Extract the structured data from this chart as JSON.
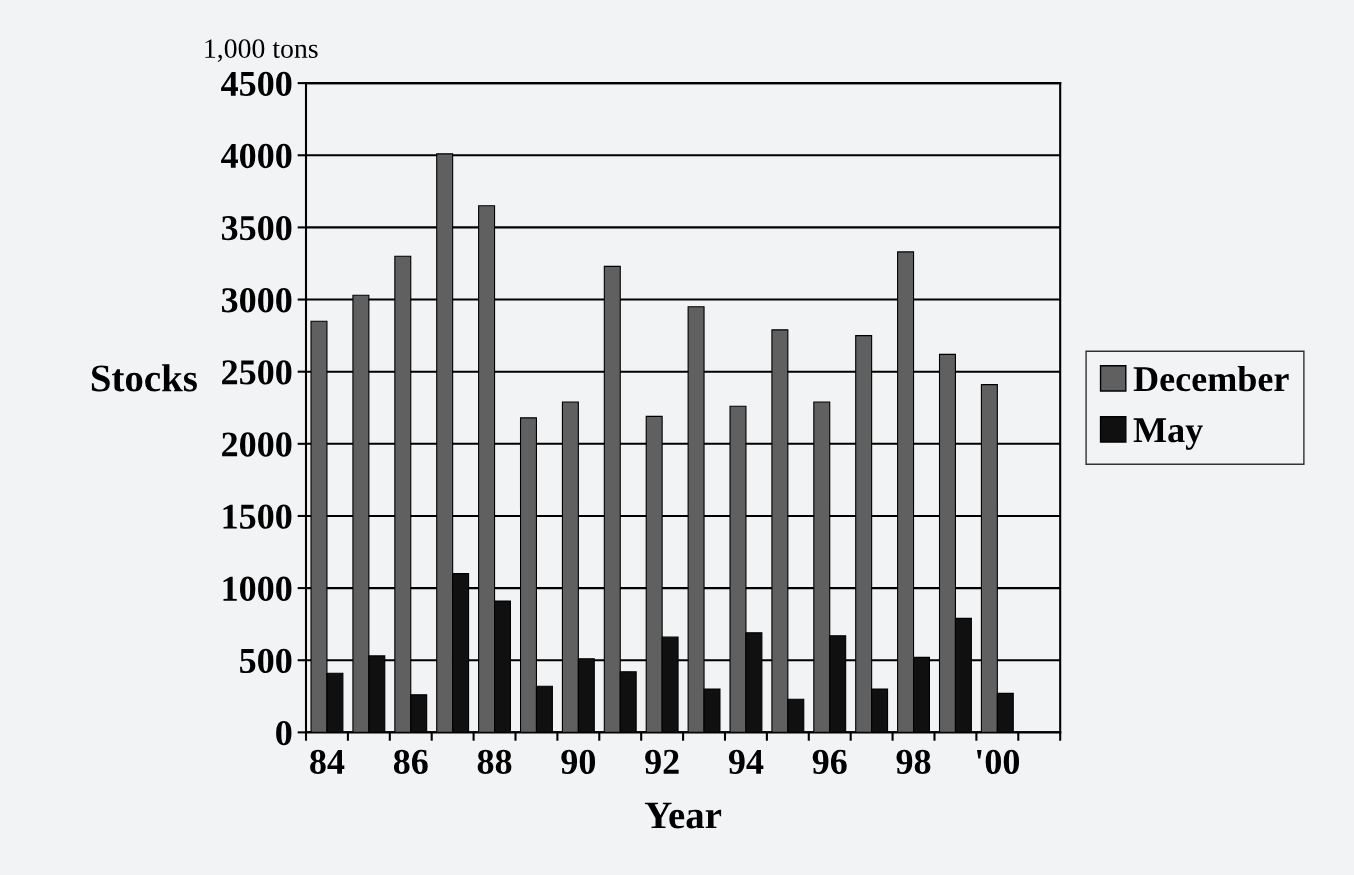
{
  "chart_data": {
    "type": "bar",
    "xlabel": "Year",
    "ylabel": "Stocks",
    "annotations": [
      "1,000 tons"
    ],
    "categories": [
      "84",
      null,
      "86",
      null,
      "88",
      null,
      "90",
      null,
      "92",
      null,
      "94",
      null,
      "96",
      null,
      "98",
      null,
      "'00"
    ],
    "series": [
      {
        "name": "December",
        "color": "#606060",
        "values": [
          2850,
          3030,
          3300,
          4010,
          3650,
          2180,
          2290,
          3230,
          2190,
          2950,
          2260,
          2790,
          2290,
          2750,
          3330,
          2620,
          2410
        ]
      },
      {
        "name": "May",
        "color": "#101010",
        "values": [
          410,
          530,
          260,
          1100,
          910,
          320,
          510,
          420,
          660,
          300,
          690,
          230,
          670,
          300,
          520,
          790,
          270
        ]
      }
    ],
    "ylim": [
      0,
      4500
    ],
    "yticks": [
      0,
      500,
      1000,
      1500,
      2000,
      2500,
      3000,
      3500,
      4000,
      4500
    ],
    "grid": "y",
    "legend": "right"
  }
}
